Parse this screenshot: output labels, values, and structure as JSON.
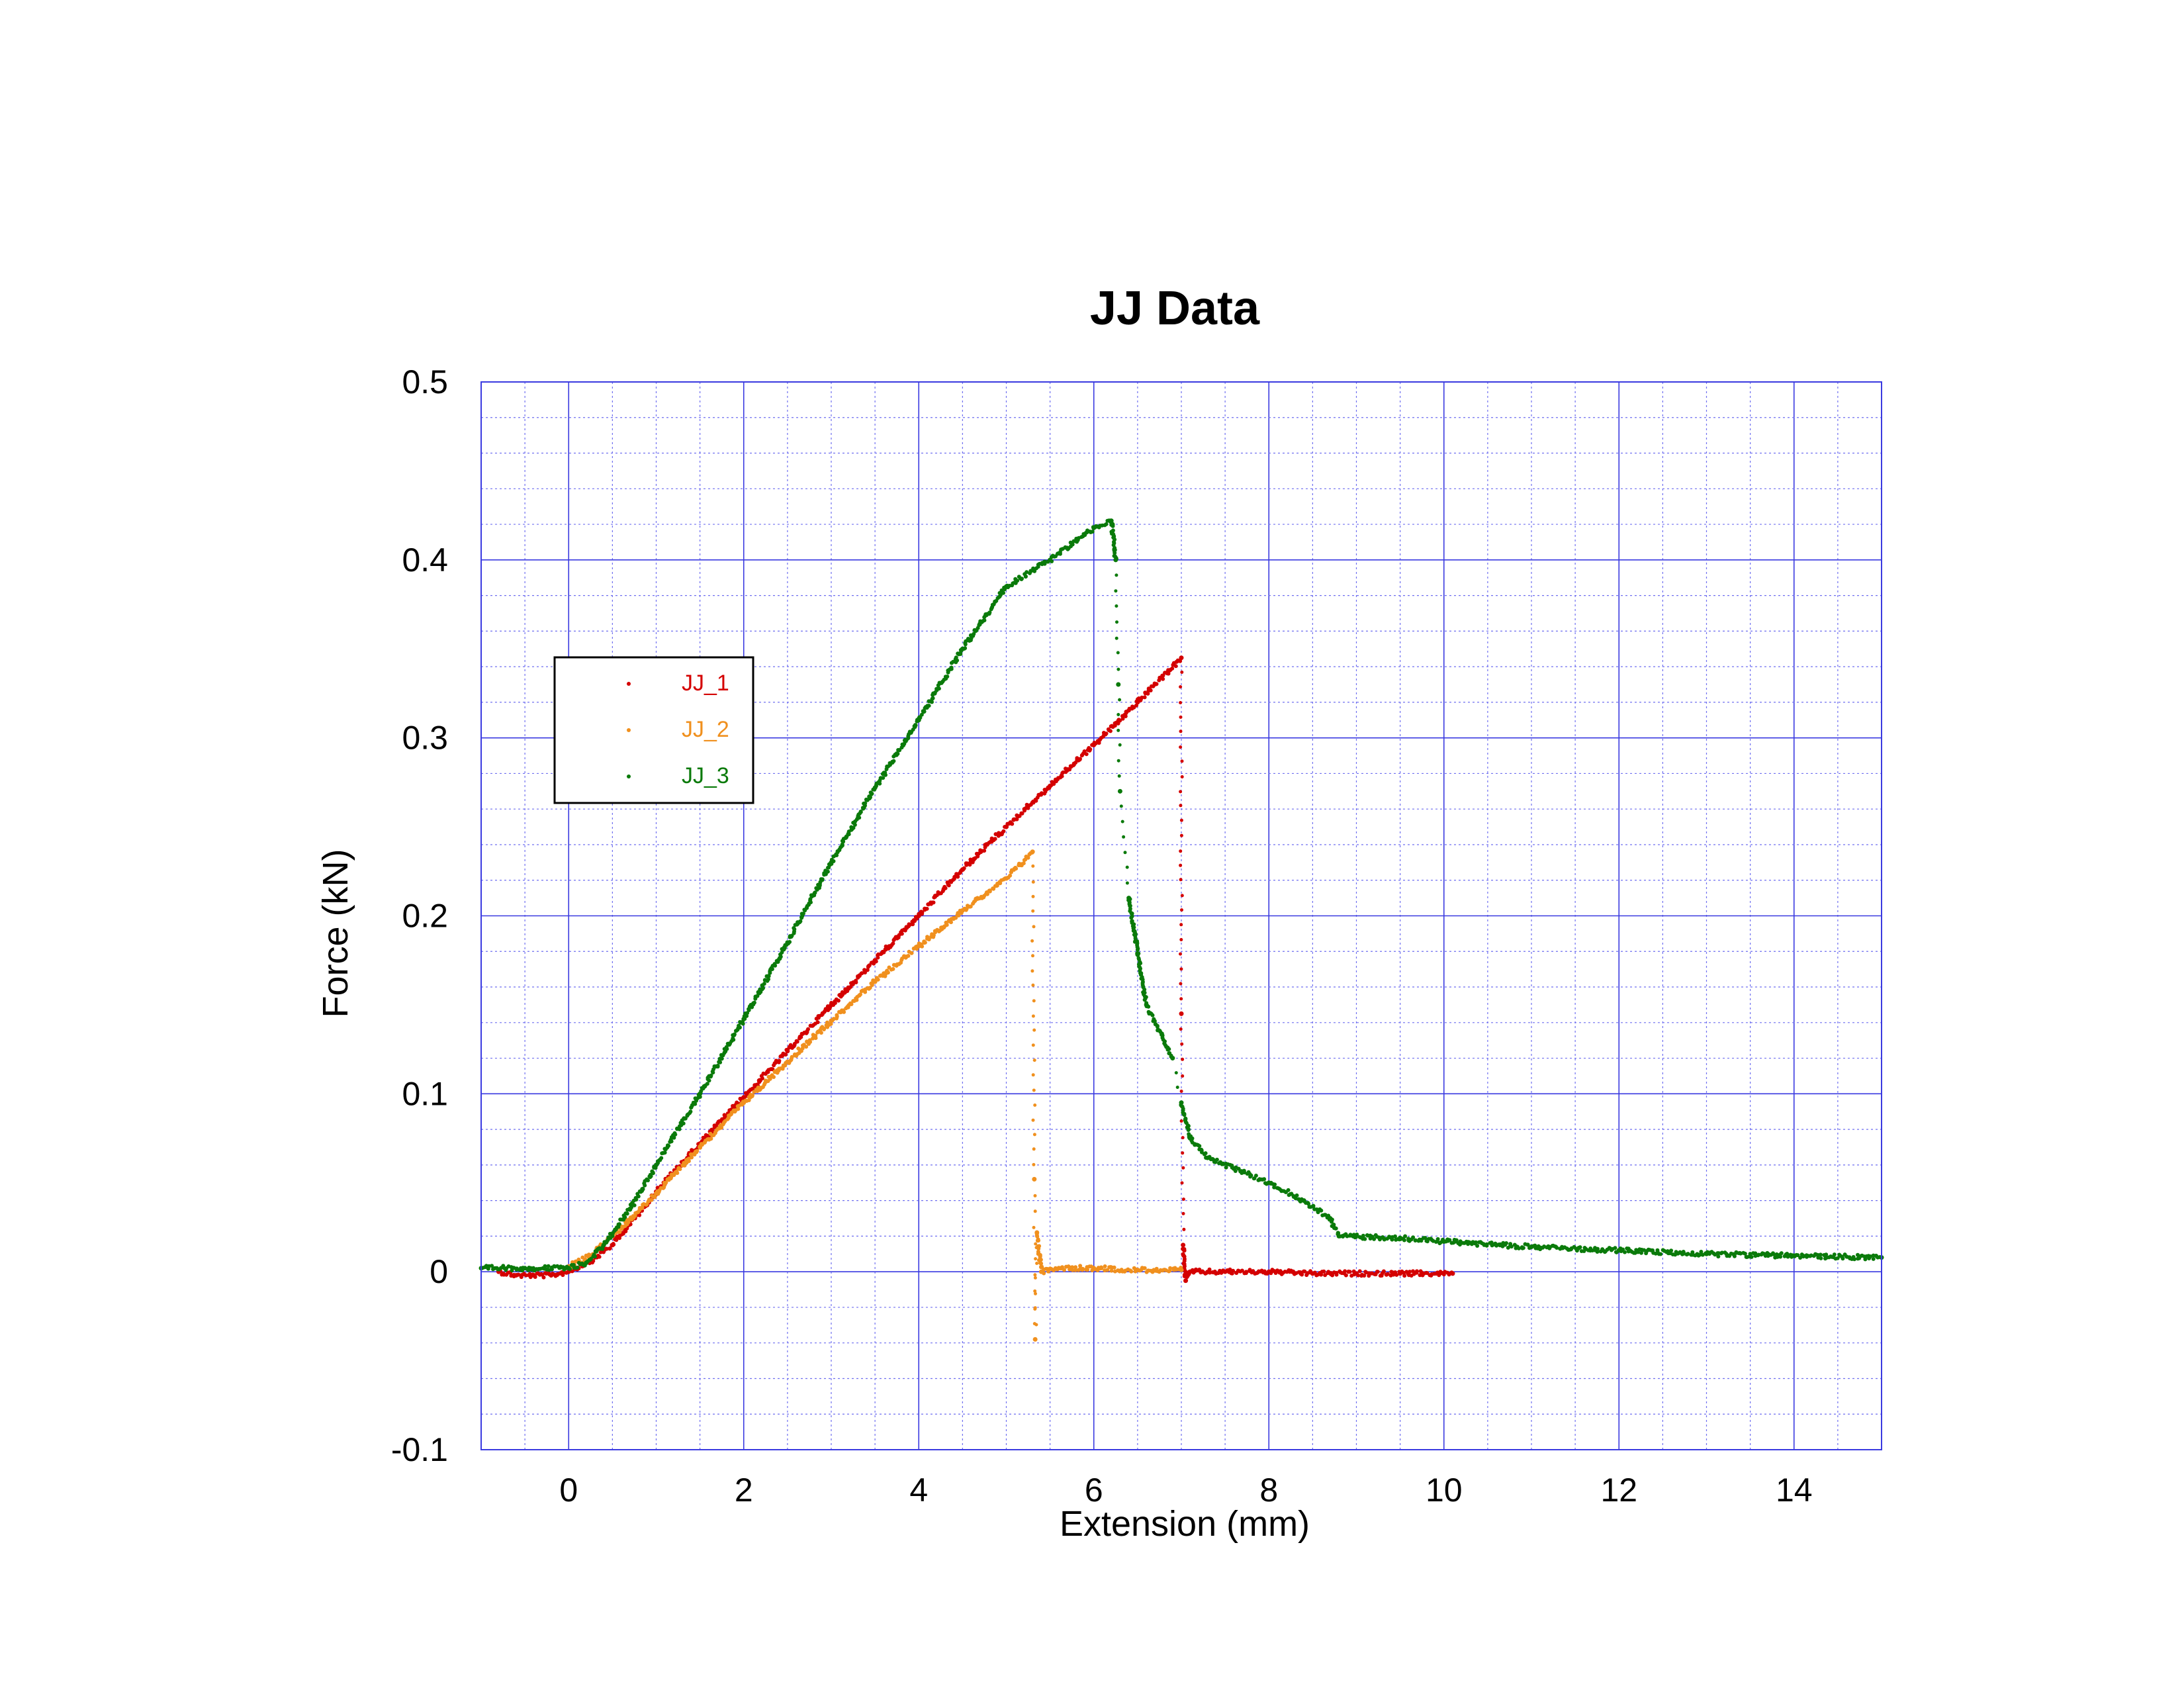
{
  "chart_data": {
    "type": "scatter",
    "title": "JJ Data",
    "xlabel": "Extension (mm)",
    "ylabel": "Force (kN)",
    "xlim": [
      -1,
      15
    ],
    "ylim": [
      -0.1,
      0.5
    ],
    "x_ticks": [
      0,
      2,
      4,
      6,
      8,
      10,
      12,
      14
    ],
    "y_ticks": [
      -0.1,
      0,
      0.1,
      0.2,
      0.3,
      0.4,
      0.5
    ],
    "x_tick_labels": [
      "0",
      "2",
      "4",
      "6",
      "8",
      "10",
      "12",
      "14"
    ],
    "y_tick_labels": [
      "-0.1",
      "0",
      "0.1",
      "0.2",
      "0.3",
      "0.4",
      "0.5"
    ],
    "grid": true,
    "legend_position": "upper-left",
    "colors": {
      "grid_major": "#3a3ae0",
      "grid_minor": "#6f6ff0"
    },
    "series": [
      {
        "name": "JJ_1",
        "color": "#d40000",
        "points": [
          [
            -0.8,
            0.0
          ],
          [
            -0.6,
            -0.002
          ],
          [
            -0.4,
            -0.002
          ],
          [
            -0.2,
            -0.002
          ],
          [
            0.0,
            0.0
          ],
          [
            0.25,
            0.006
          ],
          [
            0.5,
            0.015
          ],
          [
            1.0,
            0.045
          ],
          [
            1.5,
            0.072
          ],
          [
            2.0,
            0.098
          ],
          [
            2.5,
            0.124
          ],
          [
            3.0,
            0.15
          ],
          [
            3.5,
            0.175
          ],
          [
            4.0,
            0.2
          ],
          [
            4.5,
            0.226
          ],
          [
            5.0,
            0.25
          ],
          [
            5.5,
            0.273
          ],
          [
            6.0,
            0.296
          ],
          [
            6.5,
            0.32
          ],
          [
            7.0,
            0.345
          ],
          [
            7.0,
            0.145
          ],
          [
            7.02,
            0.015
          ],
          [
            7.05,
            -0.005
          ],
          [
            7.1,
            0.0
          ],
          [
            7.5,
            0.0
          ],
          [
            8.0,
            0.0
          ],
          [
            8.5,
            -0.001
          ],
          [
            9.0,
            -0.001
          ],
          [
            9.5,
            -0.001
          ],
          [
            10.1,
            -0.001
          ]
        ]
      },
      {
        "name": "JJ_2",
        "color": "#f0901e",
        "points": [
          [
            0.0,
            0.003
          ],
          [
            0.25,
            0.009
          ],
          [
            0.5,
            0.02
          ],
          [
            1.0,
            0.044
          ],
          [
            1.5,
            0.07
          ],
          [
            2.0,
            0.095
          ],
          [
            2.5,
            0.118
          ],
          [
            3.0,
            0.141
          ],
          [
            3.5,
            0.163
          ],
          [
            4.0,
            0.183
          ],
          [
            4.5,
            0.203
          ],
          [
            5.0,
            0.221
          ],
          [
            5.3,
            0.236
          ],
          [
            5.32,
            0.052
          ],
          [
            5.33,
            -0.038
          ],
          [
            5.35,
            0.022
          ],
          [
            5.4,
            0.0
          ],
          [
            5.6,
            0.002
          ],
          [
            6.0,
            0.002
          ],
          [
            6.5,
            0.001
          ],
          [
            7.0,
            0.001
          ]
        ]
      },
      {
        "name": "JJ_3",
        "color": "#0a7a0a",
        "points": [
          [
            -1.0,
            0.002
          ],
          [
            -0.5,
            0.002
          ],
          [
            0.0,
            0.002
          ],
          [
            0.2,
            0.005
          ],
          [
            0.4,
            0.015
          ],
          [
            0.7,
            0.035
          ],
          [
            1.0,
            0.06
          ],
          [
            1.5,
            0.1
          ],
          [
            2.0,
            0.142
          ],
          [
            2.5,
            0.185
          ],
          [
            3.0,
            0.23
          ],
          [
            3.5,
            0.272
          ],
          [
            4.0,
            0.31
          ],
          [
            4.5,
            0.35
          ],
          [
            5.0,
            0.385
          ],
          [
            5.5,
            0.4
          ],
          [
            6.0,
            0.418
          ],
          [
            6.2,
            0.422
          ],
          [
            6.25,
            0.4
          ],
          [
            6.28,
            0.33
          ],
          [
            6.3,
            0.27
          ],
          [
            6.4,
            0.21
          ],
          [
            6.6,
            0.15
          ],
          [
            6.9,
            0.12
          ],
          [
            7.0,
            0.095
          ],
          [
            7.1,
            0.075
          ],
          [
            7.3,
            0.064
          ],
          [
            7.6,
            0.058
          ],
          [
            8.0,
            0.05
          ],
          [
            8.4,
            0.04
          ],
          [
            8.7,
            0.03
          ],
          [
            8.8,
            0.02
          ],
          [
            9.5,
            0.019
          ],
          [
            10.0,
            0.017
          ],
          [
            11.0,
            0.014
          ],
          [
            12.0,
            0.012
          ],
          [
            13.0,
            0.01
          ],
          [
            14.0,
            0.009
          ],
          [
            15.0,
            0.008
          ]
        ]
      }
    ]
  }
}
